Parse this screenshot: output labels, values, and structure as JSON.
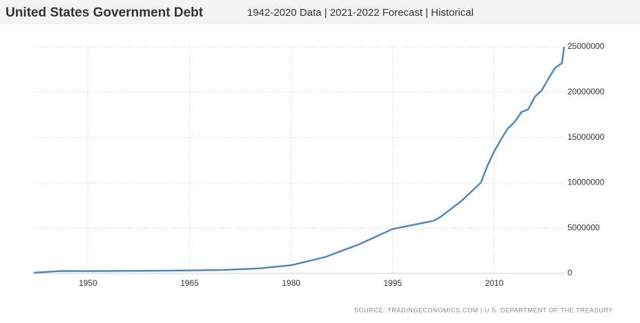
{
  "chart_data": {
    "type": "line",
    "title": "United States Government Debt",
    "subtitle": "1942-2020 Data | 2021-2022 Forecast | Historical",
    "source": "SOURCE: TRADINGECONOMICS.COM | U.S. DEPARTMENT OF THE TREASURY",
    "x": [
      1942,
      1946,
      1950,
      1960,
      1970,
      1975,
      1980,
      1985,
      1990,
      1995,
      2000,
      2001,
      2002,
      2005,
      2008,
      2009,
      2010,
      2011,
      2012,
      2013,
      2014,
      2015,
      2016,
      2017,
      2018,
      2019,
      2020,
      2020.3
    ],
    "series": [
      {
        "name": "United States Government Debt",
        "color": "#5088bd",
        "values": [
          72000,
          270000,
          257000,
          290000,
          380000,
          540000,
          900000,
          1800000,
          3200000,
          4900000,
          5650000,
          5800000,
          6200000,
          7900000,
          10000000,
          11900000,
          13500000,
          14800000,
          16000000,
          16700000,
          17800000,
          18100000,
          19500000,
          20200000,
          21500000,
          22700000,
          23200000,
          25000000
        ]
      }
    ],
    "xlim": [
      1941.8,
      2020.4
    ],
    "xticks": [
      1950,
      1965,
      1980,
      1995,
      2010
    ],
    "ylim": [
      0,
      25000000
    ],
    "yticks": [
      0,
      5000000,
      10000000,
      15000000,
      20000000,
      25000000
    ],
    "grid": true
  }
}
